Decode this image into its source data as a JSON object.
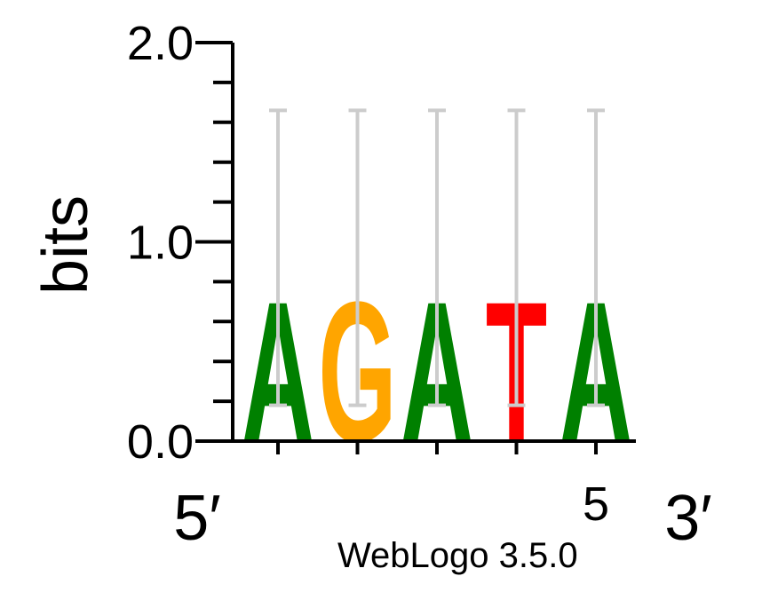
{
  "chart_data": {
    "type": "sequence-logo",
    "ylabel": "bits",
    "ylim": [
      0,
      2.0
    ],
    "y_ticks": [
      "0.0",
      "1.0",
      "2.0"
    ],
    "x_start_label": "5′",
    "x_end_label": "3′",
    "x_tick_labels": [
      "",
      "",
      "",
      "",
      "5"
    ],
    "positions": [
      {
        "letter": "A",
        "bits": 0.72,
        "color": "#008000",
        "error_low": 0.18,
        "error_high": 1.66
      },
      {
        "letter": "G",
        "bits": 0.72,
        "color": "#FFA500",
        "error_low": 0.18,
        "error_high": 1.66
      },
      {
        "letter": "A",
        "bits": 0.72,
        "color": "#008000",
        "error_low": 0.18,
        "error_high": 1.66
      },
      {
        "letter": "T",
        "bits": 0.72,
        "color": "#FF0000",
        "error_low": 0.18,
        "error_high": 1.66
      },
      {
        "letter": "A",
        "bits": 0.72,
        "color": "#008000",
        "error_low": 0.18,
        "error_high": 1.66
      }
    ],
    "error_bar_color": "#cccccc"
  },
  "footer": {
    "text": "WebLogo 3.5.0"
  }
}
